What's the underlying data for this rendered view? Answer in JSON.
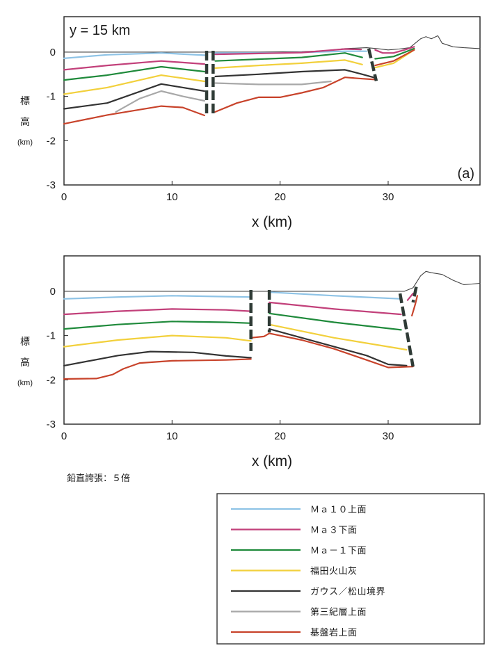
{
  "chart_data": [
    {
      "type": "line",
      "title": "y = 15 km",
      "panel_label": "(a)",
      "xlabel": "x (km)",
      "ylabel": [
        "標",
        "高",
        "(km)"
      ],
      "xlim": [
        0,
        38.5
      ],
      "ylim": [
        -3,
        0.8
      ],
      "xticks": [
        0,
        10,
        20,
        30
      ],
      "yticks": [
        0,
        -1,
        -2,
        -3
      ],
      "series": [
        {
          "name": "surface",
          "color": "#444444",
          "points": [
            [
              0,
              0
            ],
            [
              14,
              0
            ],
            [
              18,
              0
            ],
            [
              22,
              0.01
            ],
            [
              24,
              0.03
            ],
            [
              26,
              0.08
            ],
            [
              28,
              0.1
            ],
            [
              29,
              0.08
            ],
            [
              30,
              0.05
            ],
            [
              31,
              0.07
            ],
            [
              32,
              0.1
            ],
            [
              33,
              0.3
            ],
            [
              33.5,
              0.35
            ],
            [
              34,
              0.3
            ],
            [
              34.6,
              0.37
            ],
            [
              35,
              0.2
            ],
            [
              36,
              0.12
            ],
            [
              37,
              0.1
            ],
            [
              38.5,
              0.08
            ]
          ]
        },
        {
          "name": "Ma10上面",
          "color": "#8ec3e6",
          "points": [
            [
              0,
              -0.14
            ],
            [
              4,
              -0.06
            ],
            [
              9,
              -0.02
            ],
            [
              13,
              -0.07
            ]
          ]
        },
        {
          "name": "Ma10上面",
          "color": "#8ec3e6",
          "points": [
            [
              14,
              -0.02
            ],
            [
              20,
              -0.02
            ],
            [
              26,
              0.02
            ],
            [
              28,
              0.02
            ]
          ]
        },
        {
          "name": "Ma3下面",
          "color": "#c2407a",
          "points": [
            [
              0,
              -0.4
            ],
            [
              4,
              -0.3
            ],
            [
              9,
              -0.2
            ],
            [
              13,
              -0.27
            ]
          ]
        },
        {
          "name": "Ma3下面",
          "color": "#c2407a",
          "points": [
            [
              14,
              -0.05
            ],
            [
              18,
              -0.03
            ],
            [
              22,
              -0.01
            ],
            [
              26,
              0.07
            ],
            [
              27.5,
              0.06
            ]
          ]
        },
        {
          "name": "Ma3下面",
          "color": "#c2407a",
          "points": [
            [
              28.8,
              0.05
            ],
            [
              29.5,
              -0.02
            ],
            [
              30.5,
              -0.02
            ],
            [
              31.5,
              0.05
            ],
            [
              32.4,
              0.12
            ]
          ]
        },
        {
          "name": "Ma-1下面",
          "color": "#1f8a3b",
          "points": [
            [
              0,
              -0.63
            ],
            [
              4,
              -0.52
            ],
            [
              9,
              -0.33
            ],
            [
              13,
              -0.44
            ]
          ]
        },
        {
          "name": "Ma-1下面",
          "color": "#1f8a3b",
          "points": [
            [
              14,
              -0.2
            ],
            [
              18,
              -0.16
            ],
            [
              22,
              -0.12
            ],
            [
              26,
              -0.02
            ],
            [
              27.6,
              -0.12
            ]
          ]
        },
        {
          "name": "Ma-1下面",
          "color": "#1f8a3b",
          "points": [
            [
              28.8,
              -0.15
            ],
            [
              30.5,
              -0.1
            ],
            [
              32.4,
              0.08
            ]
          ]
        },
        {
          "name": "福田火山灰",
          "color": "#f2d03c",
          "points": [
            [
              0,
              -0.95
            ],
            [
              4,
              -0.8
            ],
            [
              9,
              -0.52
            ],
            [
              13,
              -0.66
            ]
          ]
        },
        {
          "name": "福田火山灰",
          "color": "#f2d03c",
          "points": [
            [
              14,
              -0.36
            ],
            [
              18,
              -0.3
            ],
            [
              22,
              -0.25
            ],
            [
              26,
              -0.18
            ],
            [
              27.6,
              -0.28
            ]
          ]
        },
        {
          "name": "福田火山灰",
          "color": "#f2d03c",
          "points": [
            [
              28.8,
              -0.35
            ],
            [
              30.5,
              -0.25
            ],
            [
              32.4,
              0.05
            ]
          ]
        },
        {
          "name": "ガウス／松山境界",
          "color": "#333333",
          "points": [
            [
              0,
              -1.28
            ],
            [
              4,
              -1.15
            ],
            [
              9,
              -0.72
            ],
            [
              13,
              -0.88
            ]
          ]
        },
        {
          "name": "ガウス／松山境界",
          "color": "#333333",
          "points": [
            [
              14,
              -0.55
            ],
            [
              18,
              -0.5
            ],
            [
              22,
              -0.44
            ],
            [
              26,
              -0.4
            ],
            [
              27.6,
              -0.5
            ],
            [
              28.8,
              -0.58
            ]
          ]
        },
        {
          "name": "第三紀層上面",
          "color": "#a8a8a8",
          "points": [
            [
              4.8,
              -1.35
            ],
            [
              7,
              -1.05
            ],
            [
              9,
              -0.88
            ],
            [
              11,
              -1.0
            ],
            [
              13,
              -1.1
            ]
          ]
        },
        {
          "name": "第三紀層上面",
          "color": "#a8a8a8",
          "points": [
            [
              14,
              -0.7
            ],
            [
              18,
              -0.73
            ],
            [
              22,
              -0.73
            ],
            [
              24.7,
              -0.66
            ]
          ]
        },
        {
          "name": "基盤岩上面",
          "color": "#c8432b",
          "points": [
            [
              0,
              -1.62
            ],
            [
              4,
              -1.42
            ],
            [
              9,
              -1.22
            ],
            [
              11,
              -1.25
            ],
            [
              13,
              -1.43
            ]
          ]
        },
        {
          "name": "基盤岩上面",
          "color": "#c8432b",
          "points": [
            [
              14,
              -1.35
            ],
            [
              16,
              -1.15
            ],
            [
              18,
              -1.02
            ],
            [
              20,
              -1.02
            ],
            [
              22,
              -0.92
            ],
            [
              24,
              -0.8
            ],
            [
              26,
              -0.57
            ],
            [
              27.6,
              -0.6
            ],
            [
              28.8,
              -0.62
            ]
          ]
        },
        {
          "name": "基盤岩上面",
          "color": "#c8432b",
          "points": [
            [
              28.8,
              -0.3
            ],
            [
              30.5,
              -0.2
            ],
            [
              32.4,
              0.05
            ]
          ]
        }
      ],
      "faults": [
        {
          "x_top": 13.2,
          "y_top": 0.03,
          "x_bot": 13.2,
          "y_bot": -1.43
        },
        {
          "x_top": 13.8,
          "y_top": 0.03,
          "x_bot": 13.8,
          "y_bot": -1.43
        },
        {
          "x_top": 28.2,
          "y_top": 0.08,
          "x_bot": 28.9,
          "y_bot": -0.65
        }
      ]
    },
    {
      "type": "line",
      "title": "",
      "panel_label": "",
      "xlabel": "x (km)",
      "ylabel": [
        "標",
        "高",
        "(km)"
      ],
      "xlim": [
        0,
        38.5
      ],
      "ylim": [
        -3,
        0.8
      ],
      "xticks": [
        0,
        10,
        20,
        30
      ],
      "yticks": [
        0,
        -1,
        -2,
        -3
      ],
      "series": [
        {
          "name": "surface",
          "color": "#444444",
          "points": [
            [
              0,
              0
            ],
            [
              10,
              0
            ],
            [
              20,
              0
            ],
            [
              30,
              0
            ],
            [
              31.5,
              0
            ],
            [
              32.3,
              0.08
            ],
            [
              33,
              0.35
            ],
            [
              33.5,
              0.45
            ],
            [
              34,
              0.42
            ],
            [
              35,
              0.38
            ],
            [
              36,
              0.25
            ],
            [
              37,
              0.15
            ],
            [
              38.5,
              0.18
            ]
          ]
        },
        {
          "name": "Ma10上面",
          "color": "#8ec3e6",
          "points": [
            [
              0,
              -0.17
            ],
            [
              5,
              -0.13
            ],
            [
              10,
              -0.1
            ],
            [
              15,
              -0.12
            ],
            [
              17.3,
              -0.13
            ]
          ]
        },
        {
          "name": "Ma10上面",
          "color": "#8ec3e6",
          "points": [
            [
              19,
              -0.02
            ],
            [
              25,
              -0.1
            ],
            [
              31.2,
              -0.17
            ]
          ]
        },
        {
          "name": "Ma3下面",
          "color": "#c2407a",
          "points": [
            [
              0,
              -0.52
            ],
            [
              5,
              -0.45
            ],
            [
              10,
              -0.4
            ],
            [
              15,
              -0.42
            ],
            [
              17.3,
              -0.45
            ]
          ]
        },
        {
          "name": "Ma3下面",
          "color": "#c2407a",
          "points": [
            [
              19,
              -0.25
            ],
            [
              25,
              -0.4
            ],
            [
              31.2,
              -0.52
            ]
          ]
        },
        {
          "name": "Ma3下面",
          "color": "#c2407a",
          "points": [
            [
              31.8,
              -0.2
            ],
            [
              32.3,
              -0.05
            ]
          ]
        },
        {
          "name": "Ma-1下面",
          "color": "#1f8a3b",
          "points": [
            [
              0,
              -0.85
            ],
            [
              5,
              -0.75
            ],
            [
              10,
              -0.68
            ],
            [
              15,
              -0.7
            ],
            [
              17.3,
              -0.72
            ]
          ]
        },
        {
          "name": "Ma-1下面",
          "color": "#1f8a3b",
          "points": [
            [
              19,
              -0.5
            ],
            [
              25,
              -0.7
            ],
            [
              31.2,
              -0.87
            ]
          ]
        },
        {
          "name": "福田火山灰",
          "color": "#f2d03c",
          "points": [
            [
              0,
              -1.25
            ],
            [
              5,
              -1.1
            ],
            [
              10,
              -1.0
            ],
            [
              15,
              -1.05
            ],
            [
              17.3,
              -1.12
            ]
          ]
        },
        {
          "name": "福田火山灰",
          "color": "#f2d03c",
          "points": [
            [
              19,
              -0.75
            ],
            [
              25,
              -1.05
            ],
            [
              31.7,
              -1.32
            ]
          ]
        },
        {
          "name": "ガウス／松山境界",
          "color": "#333333",
          "points": [
            [
              0,
              -1.68
            ],
            [
              5,
              -1.45
            ],
            [
              8,
              -1.36
            ],
            [
              12,
              -1.38
            ],
            [
              15,
              -1.46
            ],
            [
              17.3,
              -1.5
            ]
          ]
        },
        {
          "name": "ガウス／松山境界",
          "color": "#333333",
          "points": [
            [
              19,
              -0.85
            ],
            [
              22,
              -1.05
            ],
            [
              25,
              -1.25
            ],
            [
              28,
              -1.45
            ],
            [
              30,
              -1.65
            ],
            [
              31.7,
              -1.68
            ]
          ]
        },
        {
          "name": "基盤岩上面",
          "color": "#c8432b",
          "points": [
            [
              0,
              -1.98
            ],
            [
              3,
              -1.97
            ],
            [
              4.5,
              -1.88
            ],
            [
              5.5,
              -1.75
            ],
            [
              7,
              -1.62
            ],
            [
              10,
              -1.57
            ],
            [
              15,
              -1.55
            ],
            [
              17.3,
              -1.53
            ]
          ]
        },
        {
          "name": "基盤岩上面",
          "color": "#c8432b",
          "points": [
            [
              17.3,
              -1.05
            ],
            [
              18.5,
              -1.02
            ],
            [
              19,
              -0.95
            ],
            [
              22,
              -1.1
            ],
            [
              25,
              -1.3
            ],
            [
              28,
              -1.55
            ],
            [
              30,
              -1.72
            ],
            [
              32.3,
              -1.7
            ]
          ]
        },
        {
          "name": "基盤岩上面",
          "color": "#c8432b",
          "points": [
            [
              32.2,
              -0.55
            ],
            [
              32.5,
              -0.3
            ],
            [
              32.7,
              -0.1
            ]
          ]
        }
      ],
      "faults": [
        {
          "x_top": 17.3,
          "y_top": 0.03,
          "x_bot": 17.3,
          "y_bot": -1.35
        },
        {
          "x_top": 19.0,
          "y_top": 0.03,
          "x_bot": 19.0,
          "y_bot": -0.93
        },
        {
          "x_top": 31.1,
          "y_top": -0.05,
          "x_bot": 32.3,
          "y_bot": -1.7
        },
        {
          "x_top": 32.6,
          "y_top": 0.1,
          "x_bot": 32.3,
          "y_bot": -0.25
        }
      ]
    }
  ],
  "note": "鉛直誇張：５倍",
  "legend": [
    {
      "label": "Ｍａ１０上面",
      "color": "#8ec3e6"
    },
    {
      "label": "Ｍａ３下面",
      "color": "#c2407a"
    },
    {
      "label": "Ｍａ－１下面",
      "color": "#1f8a3b"
    },
    {
      "label": "福田火山灰",
      "color": "#f2d03c"
    },
    {
      "label": "ガウス／松山境界",
      "color": "#333333"
    },
    {
      "label": "第三紀層上面",
      "color": "#a8a8a8"
    },
    {
      "label": "基盤岩上面",
      "color": "#c8432b"
    }
  ]
}
